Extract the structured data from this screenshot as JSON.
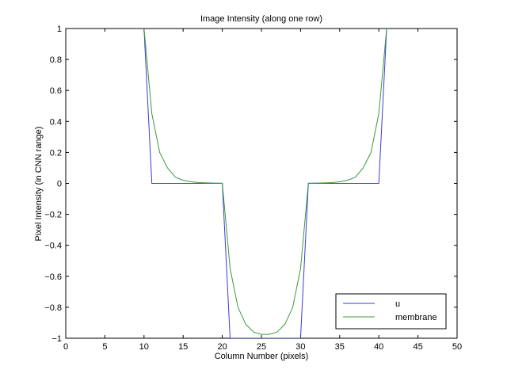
{
  "chart_data": {
    "type": "line",
    "title": "Image Intensity (along one row)",
    "xlabel": "Column Number (pixels)",
    "ylabel": "Pixel Intensity (in CNN range)",
    "xlim": [
      0,
      50
    ],
    "ylim": [
      -1,
      1
    ],
    "xticks": [
      0,
      5,
      10,
      15,
      20,
      25,
      30,
      35,
      40,
      45,
      50
    ],
    "yticks": [
      -1,
      -0.8,
      -0.6,
      -0.4,
      -0.2,
      0,
      0.2,
      0.4,
      0.6,
      0.8,
      1
    ],
    "xtick_labels": [
      "0",
      "5",
      "10",
      "15",
      "20",
      "25",
      "30",
      "35",
      "40",
      "45",
      "50"
    ],
    "ytick_labels": [
      "−1",
      "−0.8",
      "−0.6",
      "−0.4",
      "−0.2",
      "0",
      "0.2",
      "0.4",
      "0.6",
      "0.8",
      "1"
    ],
    "grid": false,
    "legend": "bottom-right",
    "series": [
      {
        "name": "u",
        "color": "#3b3bd9",
        "x": [
          10,
          11,
          20,
          21,
          30,
          31,
          40,
          41
        ],
        "y": [
          1,
          0,
          0,
          -1,
          -1,
          0,
          0,
          1
        ]
      },
      {
        "name": "membrane",
        "color": "#3a9a3a",
        "x": [
          10,
          11,
          12,
          13,
          14,
          15,
          16,
          17,
          18,
          19,
          20,
          21,
          22,
          23,
          24,
          25,
          26,
          27,
          28,
          29,
          30,
          31,
          32,
          33,
          34,
          35,
          36,
          37,
          38,
          39,
          40,
          41
        ],
        "y": [
          1,
          0.45,
          0.2,
          0.1,
          0.04,
          0.02,
          0.01,
          0.005,
          0.003,
          0.002,
          0.001,
          -0.55,
          -0.8,
          -0.91,
          -0.96,
          -0.975,
          -0.975,
          -0.96,
          -0.91,
          -0.8,
          -0.55,
          0.001,
          0.002,
          0.003,
          0.005,
          0.01,
          0.02,
          0.04,
          0.1,
          0.2,
          0.45,
          1
        ]
      }
    ]
  }
}
